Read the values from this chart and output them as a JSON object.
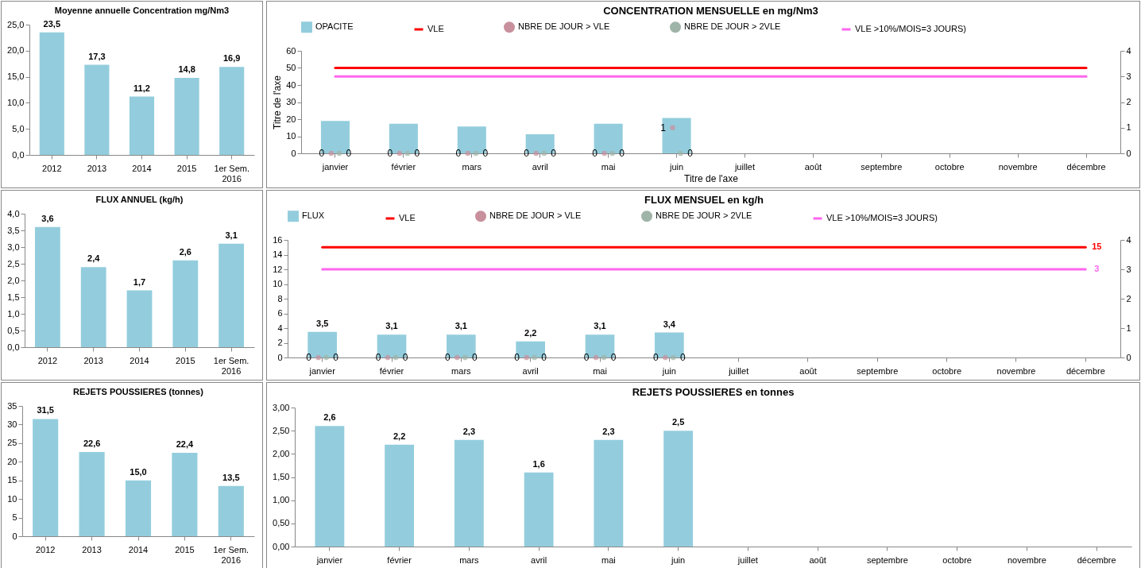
{
  "chart_data": [
    {
      "type": "bar",
      "title": "Moyenne annuelle Concentration  mg/Nm3",
      "categories": [
        "2012",
        "2013",
        "2014",
        "2015",
        "1er Sem. 2016"
      ],
      "values": [
        23.5,
        17.3,
        11.2,
        14.8,
        16.9
      ],
      "value_labels": [
        "23,5",
        "17,3",
        "11,2",
        "14,8",
        "16,9"
      ],
      "color": "#93cddd",
      "ylim": [
        0,
        25
      ],
      "yticks": [
        {
          "value": 0,
          "label": "0,0"
        },
        {
          "value": 5,
          "label": "5,0"
        },
        {
          "value": 10,
          "label": "10,0"
        },
        {
          "value": 15,
          "label": "15,0"
        },
        {
          "value": 20,
          "label": "20,0"
        },
        {
          "value": 25,
          "label": "25,0"
        }
      ]
    },
    {
      "type": "bar",
      "title": "CONCENTRATION MENSUELLE en mg/Nm3",
      "xlabel": "Titre de l'axe",
      "ylabel": "Titre de l'axe",
      "legend": "top",
      "categories": [
        "janvier",
        "février",
        "mars",
        "avril",
        "mai",
        "juin",
        "juillet",
        "août",
        "septembre",
        "octobre",
        "novembre",
        "décembre"
      ],
      "ylim": [
        0,
        60
      ],
      "yticks": [
        0,
        10,
        20,
        30,
        40,
        50,
        60
      ],
      "y2lim": [
        0,
        4
      ],
      "y2ticks": [
        0,
        1,
        2,
        3,
        4
      ],
      "series": [
        {
          "name": "OPACITE",
          "type": "bar",
          "color": "#93cddd",
          "values": [
            18.9,
            17.3,
            15.7,
            11.2,
            17.3,
            20.7,
            null,
            null,
            null,
            null,
            null,
            null
          ]
        },
        {
          "name": "VLE",
          "type": "line",
          "color": "#ff0000",
          "values": [
            50,
            50,
            50,
            50,
            50,
            50,
            50,
            50,
            50,
            50,
            50,
            50
          ]
        },
        {
          "name": "NBRE DE JOUR > VLE",
          "type": "scatter",
          "axis": "y2",
          "color": "#c8909c",
          "values": [
            0,
            0,
            0,
            0,
            0,
            1,
            null,
            null,
            null,
            null,
            null,
            null
          ],
          "value_labels": [
            "0",
            "0",
            "0",
            "0",
            "0",
            "1",
            null,
            null,
            null,
            null,
            null,
            null
          ]
        },
        {
          "name": "NBRE DE JOUR > 2VLE",
          "type": "scatter",
          "axis": "y2",
          "color": "#9fb4a8",
          "values": [
            0,
            0,
            0,
            0,
            0,
            0,
            null,
            null,
            null,
            null,
            null,
            null
          ],
          "value_labels": [
            "0",
            "0",
            "0",
            "0",
            "0",
            "0",
            null,
            null,
            null,
            null,
            null,
            null
          ]
        },
        {
          "name": "VLE >10%/MOIS=3 JOURS)",
          "type": "line",
          "axis": "y2",
          "color": "#ff66ee",
          "values": [
            3,
            3,
            3,
            3,
            3,
            3,
            3,
            3,
            3,
            3,
            3,
            3
          ]
        }
      ]
    },
    {
      "type": "bar",
      "title": "FLUX ANNUEL (kg/h)",
      "categories": [
        "2012",
        "2013",
        "2014",
        "2015",
        "1er Sem. 2016"
      ],
      "values": [
        3.6,
        2.4,
        1.7,
        2.6,
        3.1
      ],
      "value_labels": [
        "3,6",
        "2,4",
        "1,7",
        "2,6",
        "3,1"
      ],
      "color": "#93cddd",
      "ylim": [
        0,
        4
      ],
      "yticks": [
        {
          "value": 0,
          "label": "0,0"
        },
        {
          "value": 0.5,
          "label": "0,5"
        },
        {
          "value": 1,
          "label": "1,0"
        },
        {
          "value": 1.5,
          "label": "1,5"
        },
        {
          "value": 2,
          "label": "2,0"
        },
        {
          "value": 2.5,
          "label": "2,5"
        },
        {
          "value": 3,
          "label": "3,0"
        },
        {
          "value": 3.5,
          "label": "3,5"
        },
        {
          "value": 4,
          "label": "4,0"
        }
      ]
    },
    {
      "type": "bar",
      "title": "FLUX MENSUEL en kg/h",
      "legend": "top",
      "categories": [
        "janvier",
        "février",
        "mars",
        "avril",
        "mai",
        "juin",
        "juillet",
        "août",
        "septembre",
        "octobre",
        "novembre",
        "décembre"
      ],
      "ylim": [
        0,
        16
      ],
      "yticks": [
        0,
        2,
        4,
        6,
        8,
        10,
        12,
        14,
        16
      ],
      "y2lim": [
        0,
        4
      ],
      "y2ticks": [
        0,
        1,
        2,
        3,
        4
      ],
      "series": [
        {
          "name": "FLUX",
          "type": "bar",
          "color": "#93cddd",
          "values": [
            3.5,
            3.1,
            3.1,
            2.2,
            3.1,
            3.4,
            null,
            null,
            null,
            null,
            null,
            null
          ],
          "value_labels": [
            "3,5",
            "3,1",
            "3,1",
            "2,2",
            "3,1",
            "3,4",
            null,
            null,
            null,
            null,
            null,
            null
          ]
        },
        {
          "name": "VLE",
          "type": "line",
          "color": "#ff0000",
          "values": [
            15,
            15,
            15,
            15,
            15,
            15,
            15,
            15,
            15,
            15,
            15,
            15
          ],
          "value_labels": [
            null,
            null,
            null,
            null,
            null,
            null,
            null,
            null,
            null,
            null,
            null,
            "15"
          ]
        },
        {
          "name": "NBRE DE JOUR > VLE",
          "type": "scatter",
          "axis": "y2",
          "color": "#c8909c",
          "values": [
            0,
            0,
            0,
            0,
            0,
            0,
            null,
            null,
            null,
            null,
            null,
            null
          ],
          "value_labels": [
            "0",
            "0",
            "0",
            "0",
            "0",
            "0",
            null,
            null,
            null,
            null,
            null,
            null
          ]
        },
        {
          "name": "NBRE DE JOUR > 2VLE",
          "type": "scatter",
          "axis": "y2",
          "color": "#9fb4a8",
          "values": [
            0,
            0,
            0,
            0,
            0,
            0,
            null,
            null,
            null,
            null,
            null,
            null
          ],
          "value_labels": [
            "0",
            "0",
            "0",
            "0",
            "0",
            "0",
            null,
            null,
            null,
            null,
            null,
            null
          ]
        },
        {
          "name": "VLE >10%/MOIS=3 JOURS)",
          "type": "line",
          "axis": "y2",
          "color": "#ff66ee",
          "values": [
            3,
            3,
            3,
            3,
            3,
            3,
            3,
            3,
            3,
            3,
            3,
            3
          ],
          "value_labels": [
            null,
            null,
            null,
            null,
            null,
            null,
            null,
            null,
            null,
            null,
            null,
            "3"
          ]
        }
      ]
    },
    {
      "type": "bar",
      "title": "REJETS POUSSIERES (tonnes)",
      "categories": [
        "2012",
        "2013",
        "2014",
        "2015",
        "1er Sem. 2016"
      ],
      "values": [
        31.5,
        22.6,
        15.0,
        22.4,
        13.5
      ],
      "value_labels": [
        "31,5",
        "22,6",
        "15,0",
        "22,4",
        "13,5"
      ],
      "color": "#93cddd",
      "ylim": [
        0,
        35
      ],
      "yticks": [
        0,
        5,
        10,
        15,
        20,
        25,
        30,
        35
      ]
    },
    {
      "type": "bar",
      "title": "REJETS POUSSIERES en tonnes",
      "categories": [
        "janvier",
        "février",
        "mars",
        "avril",
        "mai",
        "juin",
        "juillet",
        "août",
        "septembre",
        "octobre",
        "novembre",
        "décembre"
      ],
      "values": [
        2.6,
        2.2,
        2.3,
        1.6,
        2.3,
        2.5,
        null,
        null,
        null,
        null,
        null,
        null
      ],
      "value_labels": [
        "2,6",
        "2,2",
        "2,3",
        "1,6",
        "2,3",
        "2,5",
        null,
        null,
        null,
        null,
        null,
        null
      ],
      "color": "#93cddd",
      "ylim": [
        0,
        3
      ],
      "yticks": [
        {
          "value": 0,
          "label": "0,00"
        },
        {
          "value": 0.5,
          "label": "0,50"
        },
        {
          "value": 1,
          "label": "1,00"
        },
        {
          "value": 1.5,
          "label": "1,50"
        },
        {
          "value": 2,
          "label": "2,00"
        },
        {
          "value": 2.5,
          "label": "2,50"
        },
        {
          "value": 3,
          "label": "3,00"
        }
      ]
    }
  ]
}
